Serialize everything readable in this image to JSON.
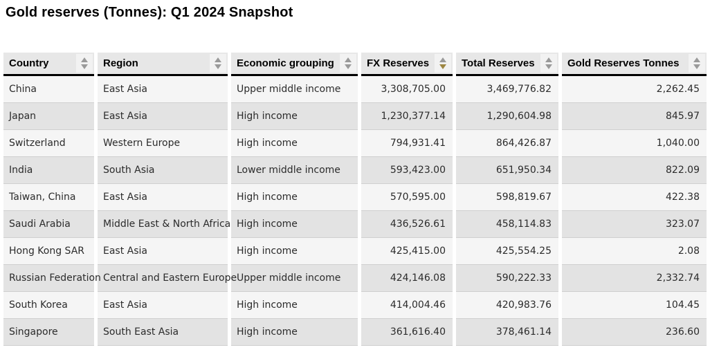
{
  "page": {
    "title": "Gold reserves (Tonnes): Q1 2024 Snapshot"
  },
  "colors": {
    "header_bg": "#e7e7e7",
    "row_odd_bg": "#f5f5f5",
    "row_even_bg": "#e3e3e3",
    "header_underline": "#000000",
    "sort_arrow_inactive": "#9a9a9a",
    "sort_arrow_active": "#9d8642",
    "row_divider": "#cfcfcf"
  },
  "table": {
    "columns": [
      {
        "label": "Country",
        "key": "country",
        "type": "text",
        "sort": "none"
      },
      {
        "label": "Region",
        "key": "region",
        "type": "text",
        "sort": "none"
      },
      {
        "label": "Economic grouping",
        "key": "economic-grouping",
        "type": "text",
        "sort": "none"
      },
      {
        "label": "FX Reserves",
        "key": "fx-reserves",
        "type": "number",
        "sort": "desc"
      },
      {
        "label": "Total Reserves",
        "key": "total-reserves",
        "type": "number",
        "sort": "none"
      },
      {
        "label": "Gold Reserves Tonnes",
        "key": "gold-reserves-tonnes",
        "type": "number",
        "sort": "none"
      }
    ],
    "rows": [
      [
        "China",
        "East Asia",
        "Upper middle income",
        "3,308,705.00",
        "3,469,776.82",
        "2,262.45"
      ],
      [
        "Japan",
        "East Asia",
        "High income",
        "1,230,377.14",
        "1,290,604.98",
        "845.97"
      ],
      [
        "Switzerland",
        "Western Europe",
        "High income",
        "794,931.41",
        "864,426.87",
        "1,040.00"
      ],
      [
        "India",
        "South Asia",
        "Lower middle income",
        "593,423.00",
        "651,950.34",
        "822.09"
      ],
      [
        "Taiwan, China",
        "East Asia",
        "High income",
        "570,595.00",
        "598,819.67",
        "422.38"
      ],
      [
        "Saudi Arabia",
        "Middle East & North Africa",
        "High income",
        "436,526.61",
        "458,114.83",
        "323.07"
      ],
      [
        "Hong Kong SAR",
        "East Asia",
        "High income",
        "425,415.00",
        "425,554.25",
        "2.08"
      ],
      [
        "Russian Federation",
        "Central and Eastern Europe",
        "Upper middle income",
        "424,146.08",
        "590,222.33",
        "2,332.74"
      ],
      [
        "South Korea",
        "East Asia",
        "High income",
        "414,004.46",
        "420,983.76",
        "104.45"
      ],
      [
        "Singapore",
        "South East Asia",
        "High income",
        "361,616.40",
        "378,461.14",
        "236.60"
      ]
    ]
  }
}
